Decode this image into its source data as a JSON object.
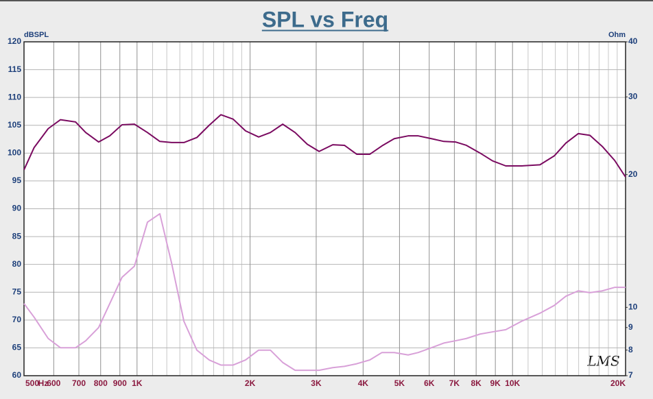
{
  "chart_data": {
    "type": "line",
    "title": "SPL vs Freq",
    "y_label": "dBSPL",
    "y2_label": "Ohm",
    "x_label": "Hz",
    "watermark": "LMS",
    "xscale": "log",
    "y2scale": "log",
    "grid": true,
    "x": [
      500,
      532,
      580,
      625,
      686,
      730,
      790,
      846,
      912,
      984,
      1066,
      1150,
      1236,
      1333,
      1443,
      1556,
      1672,
      1803,
      1945,
      2108,
      2265,
      2443,
      2636,
      2840,
      3054,
      3321,
      3567,
      3846,
      4169,
      4490,
      4842,
      5272,
      5610,
      6081,
      6561,
      7047,
      7534,
      8199,
      8850,
      9594,
      10568,
      11830,
      12914,
      13870,
      14960,
      16070,
      17340,
      18700,
      20000
    ],
    "series": [
      {
        "color": "#7a0a60",
        "values": [
          97,
          101.0,
          104.4,
          106.0,
          105.6,
          103.7,
          102.0,
          103.1,
          105.1,
          105.2,
          103.7,
          102.1,
          101.9,
          101.9,
          102.8,
          105.0,
          106.9,
          106.1,
          104.0,
          102.9,
          103.7,
          105.2,
          103.7,
          101.6,
          100.3,
          101.5,
          101.4,
          99.8,
          99.8,
          101.3,
          102.6,
          103.1,
          103.1,
          102.6,
          102.1,
          102.0,
          101.4,
          100.0,
          98.6,
          97.7,
          97.7,
          97.9,
          99.5,
          101.8,
          103.5,
          103.2,
          101.2,
          98.7,
          95.7
        ]
      },
      {
        "color": "#d8a0d8",
        "axis": "y2",
        "values": [
          10.2,
          9.5,
          8.5,
          8.1,
          8.1,
          8.4,
          9.0,
          10.2,
          11.7,
          12.4,
          15.6,
          16.3,
          12.6,
          9.3,
          8.0,
          7.6,
          7.4,
          7.4,
          7.6,
          8.0,
          8.0,
          7.5,
          7.2,
          7.2,
          7.2,
          7.3,
          7.35,
          7.45,
          7.6,
          7.9,
          7.9,
          7.8,
          7.9,
          8.1,
          8.3,
          8.4,
          8.5,
          8.7,
          8.8,
          8.9,
          9.3,
          9.7,
          10.1,
          10.6,
          10.9,
          10.8,
          10.9,
          11.1,
          11.1
        ]
      }
    ],
    "xlim": [
      500,
      20000
    ],
    "xticks": [
      500,
      600,
      700,
      800,
      900,
      {
        "value": 1000,
        "label": "1K"
      },
      {
        "value": 2000,
        "label": "2K"
      },
      {
        "value": 3000,
        "label": "3K"
      },
      {
        "value": 4000,
        "label": "4K"
      },
      {
        "value": 5000,
        "label": "5K"
      },
      {
        "value": 6000,
        "label": "6K"
      },
      {
        "value": 7000,
        "label": "7K"
      },
      {
        "value": 8000,
        "label": "8K"
      },
      {
        "value": 9000,
        "label": "9K"
      },
      {
        "value": 10000,
        "label": "10K"
      },
      {
        "value": 20000,
        "label": "20K"
      }
    ],
    "xminorticks": [
      1100,
      1200,
      1300,
      1400,
      1500,
      1600,
      1700,
      1800,
      1900,
      11000,
      12000,
      13000,
      14000,
      15000,
      16000,
      17000,
      18000,
      19000
    ],
    "ylim": [
      60,
      120
    ],
    "yticks": [
      60,
      65,
      70,
      75,
      80,
      85,
      90,
      95,
      100,
      105,
      110,
      115,
      120
    ],
    "y2lim": [
      7,
      40
    ],
    "y2ticks": [
      7,
      8,
      9,
      10,
      20,
      30,
      40
    ]
  }
}
